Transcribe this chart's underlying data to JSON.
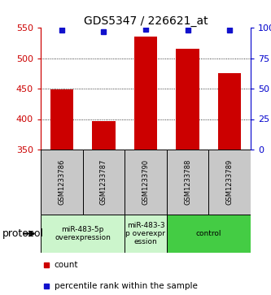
{
  "title": "GDS5347 / 226621_at",
  "samples": [
    "GSM1233786",
    "GSM1233787",
    "GSM1233790",
    "GSM1233788",
    "GSM1233789"
  ],
  "counts": [
    449,
    397,
    535,
    516,
    476
  ],
  "percentiles": [
    98,
    97,
    99,
    98,
    98
  ],
  "ylim_left": [
    350,
    550
  ],
  "ylim_right": [
    0,
    100
  ],
  "yticks_left": [
    350,
    400,
    450,
    500,
    550
  ],
  "yticks_right": [
    0,
    25,
    50,
    75,
    100
  ],
  "ytick_labels_right": [
    "0",
    "25",
    "50",
    "75",
    "100%"
  ],
  "grid_values": [
    400,
    450,
    500
  ],
  "bar_color": "#cc0000",
  "dot_color": "#1111cc",
  "bar_bottom": 350,
  "bar_width": 0.55,
  "proto_groups": [
    {
      "indices": [
        0,
        1
      ],
      "label": "miR-483-5p\noverexpression",
      "color": "#ccf5cc"
    },
    {
      "indices": [
        2
      ],
      "label": "miR-483-3\np overexpr\nession",
      "color": "#ccf5cc"
    },
    {
      "indices": [
        3,
        4
      ],
      "label": "control",
      "color": "#44cc44"
    }
  ],
  "protocol_label": "protocol",
  "legend_count_label": "count",
  "legend_percentile_label": "percentile rank within the sample",
  "background_color": "#ffffff",
  "label_area_color": "#c8c8c8",
  "left_tick_color": "#cc0000",
  "right_tick_color": "#0000cc",
  "title_fontsize": 10,
  "tick_fontsize": 8,
  "sample_fontsize": 6,
  "proto_fontsize": 6.5,
  "legend_fontsize": 7.5
}
